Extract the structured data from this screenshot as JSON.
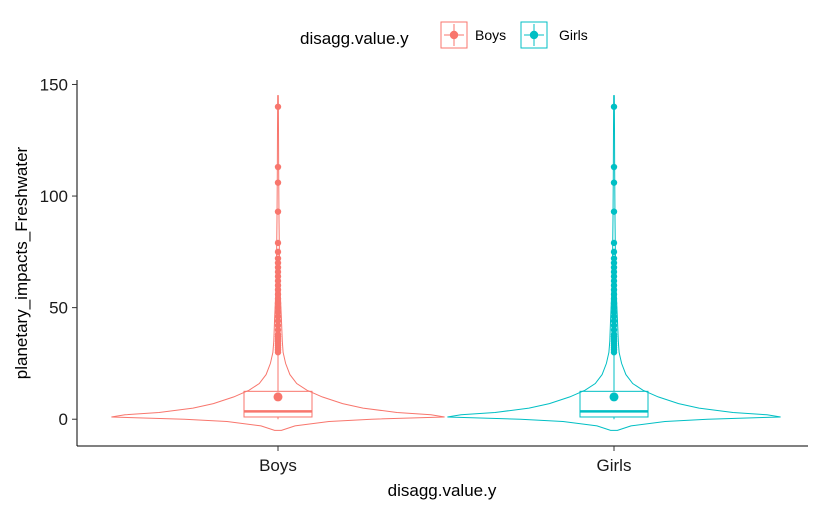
{
  "chart_data": {
    "type": "violin",
    "xlabel": "disagg.value.y",
    "ylabel": "planetary_impacts_Freshwater",
    "categories": [
      "Boys",
      "Girls"
    ],
    "ylim": [
      -12,
      152
    ],
    "yticks": [
      0,
      50,
      100,
      150
    ],
    "ytick_labels": [
      "0",
      "50",
      "100",
      "150"
    ],
    "grid": false,
    "legend": {
      "title": "disagg.value.y",
      "position": "top",
      "entries": [
        "Boys",
        "Girls"
      ]
    },
    "series": [
      {
        "name": "Boys",
        "color": "#F8766D",
        "boxplot": {
          "q1": 1,
          "median": 3.5,
          "q3": 12.5,
          "whisker_low": 0,
          "whisker_high": 29
        },
        "violin_range": [
          -5,
          145
        ],
        "violin_half_width": [
          [
            -5,
            0.02
          ],
          [
            -3,
            0.1
          ],
          [
            -1,
            0.3
          ],
          [
            0,
            0.55
          ],
          [
            1,
            0.98
          ],
          [
            2,
            0.9
          ],
          [
            3,
            0.7
          ],
          [
            5,
            0.5
          ],
          [
            7,
            0.38
          ],
          [
            10,
            0.26
          ],
          [
            13,
            0.17
          ],
          [
            16,
            0.11
          ],
          [
            20,
            0.07
          ],
          [
            25,
            0.045
          ],
          [
            30,
            0.03
          ],
          [
            35,
            0.025
          ],
          [
            45,
            0.02
          ],
          [
            55,
            0.014
          ],
          [
            70,
            0.009
          ],
          [
            90,
            0.006
          ],
          [
            110,
            0.004
          ],
          [
            130,
            0.003
          ],
          [
            145,
            0.002
          ]
        ],
        "outliers": [
          30,
          31,
          32,
          33,
          34,
          35,
          36,
          37,
          38,
          40,
          42,
          44,
          46,
          48,
          50,
          52,
          54,
          56,
          58,
          60,
          62,
          64,
          66,
          68,
          70,
          72,
          75,
          79,
          93,
          106,
          113,
          140
        ],
        "mean": 10
      },
      {
        "name": "Girls",
        "color": "#00BFC4",
        "boxplot": {
          "q1": 1,
          "median": 3.5,
          "q3": 12.5,
          "whisker_low": 0,
          "whisker_high": 29
        },
        "violin_range": [
          -5,
          145
        ],
        "violin_half_width": [
          [
            -5,
            0.02
          ],
          [
            -3,
            0.1
          ],
          [
            -1,
            0.3
          ],
          [
            0,
            0.55
          ],
          [
            1,
            0.98
          ],
          [
            2,
            0.9
          ],
          [
            3,
            0.7
          ],
          [
            5,
            0.5
          ],
          [
            7,
            0.38
          ],
          [
            10,
            0.26
          ],
          [
            13,
            0.17
          ],
          [
            16,
            0.11
          ],
          [
            20,
            0.07
          ],
          [
            25,
            0.045
          ],
          [
            30,
            0.03
          ],
          [
            35,
            0.025
          ],
          [
            45,
            0.02
          ],
          [
            55,
            0.014
          ],
          [
            70,
            0.009
          ],
          [
            90,
            0.006
          ],
          [
            110,
            0.004
          ],
          [
            130,
            0.003
          ],
          [
            145,
            0.002
          ]
        ],
        "outliers": [
          30,
          31,
          32,
          33,
          34,
          35,
          36,
          37,
          38,
          40,
          42,
          44,
          46,
          48,
          50,
          52,
          54,
          56,
          58,
          60,
          62,
          64,
          66,
          68,
          70,
          72,
          75,
          79,
          93,
          106,
          113,
          140
        ],
        "mean": 10
      }
    ]
  }
}
